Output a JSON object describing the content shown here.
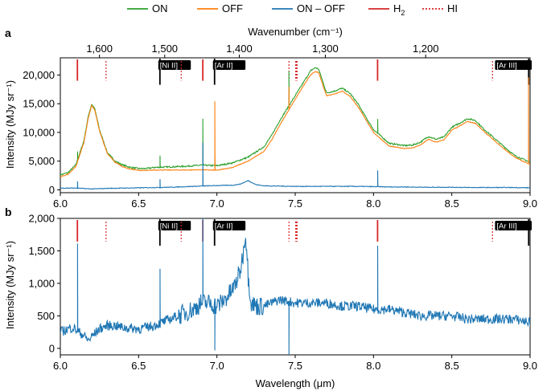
{
  "colors": {
    "on": "#2ca02c",
    "off": "#ff7f0e",
    "diff": "#1f77b4",
    "h2": "#d62728",
    "hi": "#d62728",
    "tag_bg": "#000000",
    "tag_text": "#ffffff"
  },
  "legend": {
    "on": "ON",
    "off": "OFF",
    "diff": "ON – OFF",
    "h2_main": "H",
    "h2_sub": "2",
    "hi": "HI"
  },
  "chart_data": [
    {
      "type": "line",
      "panel": "a",
      "xlabel": "",
      "ylabel": "Intensity (MJy sr⁻¹)",
      "top_axis_label": "Wavenumber (cm⁻¹)",
      "xlim": [
        6.0,
        9.0
      ],
      "ylim": [
        -500,
        23000
      ],
      "x_ticks": [
        "6.0",
        "6.5",
        "7.0",
        "7.5",
        "8.0",
        "8.5",
        "9.0"
      ],
      "y_ticks": [
        "0",
        "5,000",
        "10,000",
        "15,000",
        "20,000"
      ],
      "top_ticks": [
        "1,600",
        "1,500",
        "1,400",
        "1,300",
        "1,200"
      ],
      "h2_lines": [
        6.109,
        6.91,
        8.026
      ],
      "hi_lines": [
        6.292,
        6.772,
        7.46,
        7.503,
        7.508,
        7.512,
        8.76
      ],
      "ion_lines": [
        {
          "x": 6.636,
          "label": "[Ni II]"
        },
        {
          "x": 6.985,
          "label": "[Ar II]"
        },
        {
          "x": 8.991,
          "label": "[Ar III]"
        }
      ],
      "series": [
        {
          "name": "ON",
          "x": [
            6.0,
            6.05,
            6.1,
            6.15,
            6.18,
            6.2,
            6.22,
            6.25,
            6.3,
            6.35,
            6.4,
            6.45,
            6.5,
            6.55,
            6.6,
            6.7,
            6.8,
            6.9,
            7.0,
            7.1,
            7.2,
            7.3,
            7.35,
            7.4,
            7.45,
            7.5,
            7.55,
            7.6,
            7.63,
            7.65,
            7.7,
            7.75,
            7.8,
            7.85,
            7.9,
            7.95,
            8.0,
            8.1,
            8.2,
            8.25,
            8.3,
            8.35,
            8.4,
            8.45,
            8.5,
            8.55,
            8.6,
            8.65,
            8.7,
            8.8,
            8.9,
            9.0
          ],
          "y": [
            2600,
            3000,
            4400,
            8500,
            13000,
            14900,
            14100,
            10500,
            6500,
            5000,
            4300,
            3900,
            3700,
            3700,
            3900,
            4000,
            4100,
            4300,
            4200,
            4700,
            5700,
            7500,
            9500,
            12000,
            14200,
            16400,
            18600,
            20800,
            21300,
            21000,
            16900,
            17200,
            17700,
            16800,
            15000,
            12700,
            10500,
            8100,
            7700,
            7800,
            8300,
            9300,
            8800,
            9200,
            10900,
            11600,
            12400,
            12100,
            10700,
            8300,
            6000,
            4800
          ]
        },
        {
          "name": "OFF",
          "x": [
            6.0,
            6.05,
            6.1,
            6.15,
            6.18,
            6.2,
            6.22,
            6.25,
            6.3,
            6.35,
            6.4,
            6.45,
            6.5,
            6.55,
            6.6,
            6.7,
            6.8,
            6.9,
            7.0,
            7.1,
            7.2,
            7.3,
            7.35,
            7.4,
            7.45,
            7.5,
            7.55,
            7.6,
            7.63,
            7.65,
            7.7,
            7.75,
            7.8,
            7.85,
            7.9,
            7.95,
            8.0,
            8.1,
            8.2,
            8.25,
            8.3,
            8.35,
            8.4,
            8.45,
            8.5,
            8.55,
            8.6,
            8.65,
            8.7,
            8.8,
            8.9,
            9.0
          ],
          "y": [
            2300,
            2700,
            4100,
            8200,
            12700,
            14700,
            13900,
            10300,
            6300,
            4800,
            4000,
            3600,
            3400,
            3350,
            3450,
            3450,
            3450,
            3500,
            3400,
            3900,
            5000,
            6700,
            8700,
            11200,
            13500,
            15800,
            18000,
            20100,
            20600,
            20400,
            16400,
            16700,
            17200,
            16300,
            14500,
            12300,
            10000,
            7600,
            7200,
            7300,
            7800,
            8800,
            8300,
            8700,
            10400,
            11100,
            11900,
            11600,
            10300,
            7900,
            5700,
            4400
          ]
        },
        {
          "name": "ON – OFF",
          "x": [
            6.0,
            6.1,
            6.2,
            6.3,
            6.4,
            6.5,
            6.6,
            6.7,
            6.8,
            6.9,
            7.0,
            7.1,
            7.15,
            7.2,
            7.25,
            7.3,
            7.4,
            7.5,
            7.6,
            7.7,
            7.8,
            7.9,
            8.0,
            8.1,
            8.2,
            8.3,
            8.4,
            8.5,
            8.6,
            8.7,
            8.8,
            8.9,
            9.0
          ],
          "y": [
            300,
            300,
            150,
            250,
            300,
            350,
            400,
            450,
            550,
            650,
            750,
            800,
            1000,
            1600,
            900,
            700,
            650,
            600,
            600,
            600,
            600,
            600,
            550,
            500,
            500,
            450,
            450,
            450,
            400,
            400,
            400,
            400,
            350
          ]
        }
      ]
    },
    {
      "type": "line",
      "panel": "b",
      "xlabel": "Wavelength (μm)",
      "ylabel": "Intensity (MJy sr⁻¹)",
      "xlim": [
        6.0,
        9.0
      ],
      "ylim": [
        -100,
        2000
      ],
      "x_ticks": [
        "6.0",
        "6.5",
        "7.0",
        "7.5",
        "8.0",
        "8.5",
        "9.0"
      ],
      "y_ticks": [
        "0",
        "500",
        "1,000",
        "1,500",
        "2,000"
      ],
      "h2_lines": [
        6.109,
        6.91,
        8.026
      ],
      "hi_lines": [
        6.292,
        6.772,
        7.46,
        7.503,
        7.508,
        7.512,
        8.76
      ],
      "ion_lines": [
        {
          "x": 6.636,
          "label": "[Ni II]"
        },
        {
          "x": 6.985,
          "label": "[Ar II]"
        },
        {
          "x": 8.991,
          "label": "[Ar III]"
        }
      ],
      "series": [
        {
          "name": "ON – OFF",
          "x": [
            6.0,
            6.05,
            6.08,
            6.12,
            6.15,
            6.18,
            6.2,
            6.25,
            6.3,
            6.35,
            6.4,
            6.5,
            6.6,
            6.7,
            6.8,
            6.85,
            6.9,
            6.95,
            7.0,
            7.05,
            7.1,
            7.12,
            7.15,
            7.17,
            7.18,
            7.19,
            7.2,
            7.22,
            7.25,
            7.3,
            7.35,
            7.4,
            7.5,
            7.6,
            7.7,
            7.8,
            7.9,
            8.0,
            8.1,
            8.2,
            8.3,
            8.4,
            8.5,
            8.6,
            8.7,
            8.8,
            8.9,
            9.0
          ],
          "y": [
            250,
            300,
            320,
            250,
            200,
            120,
            180,
            300,
            350,
            350,
            320,
            300,
            350,
            450,
            550,
            600,
            700,
            700,
            650,
            750,
            900,
            1000,
            1200,
            1500,
            1750,
            1600,
            1100,
            700,
            650,
            650,
            700,
            750,
            700,
            700,
            700,
            650,
            650,
            600,
            600,
            550,
            500,
            500,
            500,
            450,
            450,
            450,
            450,
            400
          ]
        }
      ]
    }
  ]
}
